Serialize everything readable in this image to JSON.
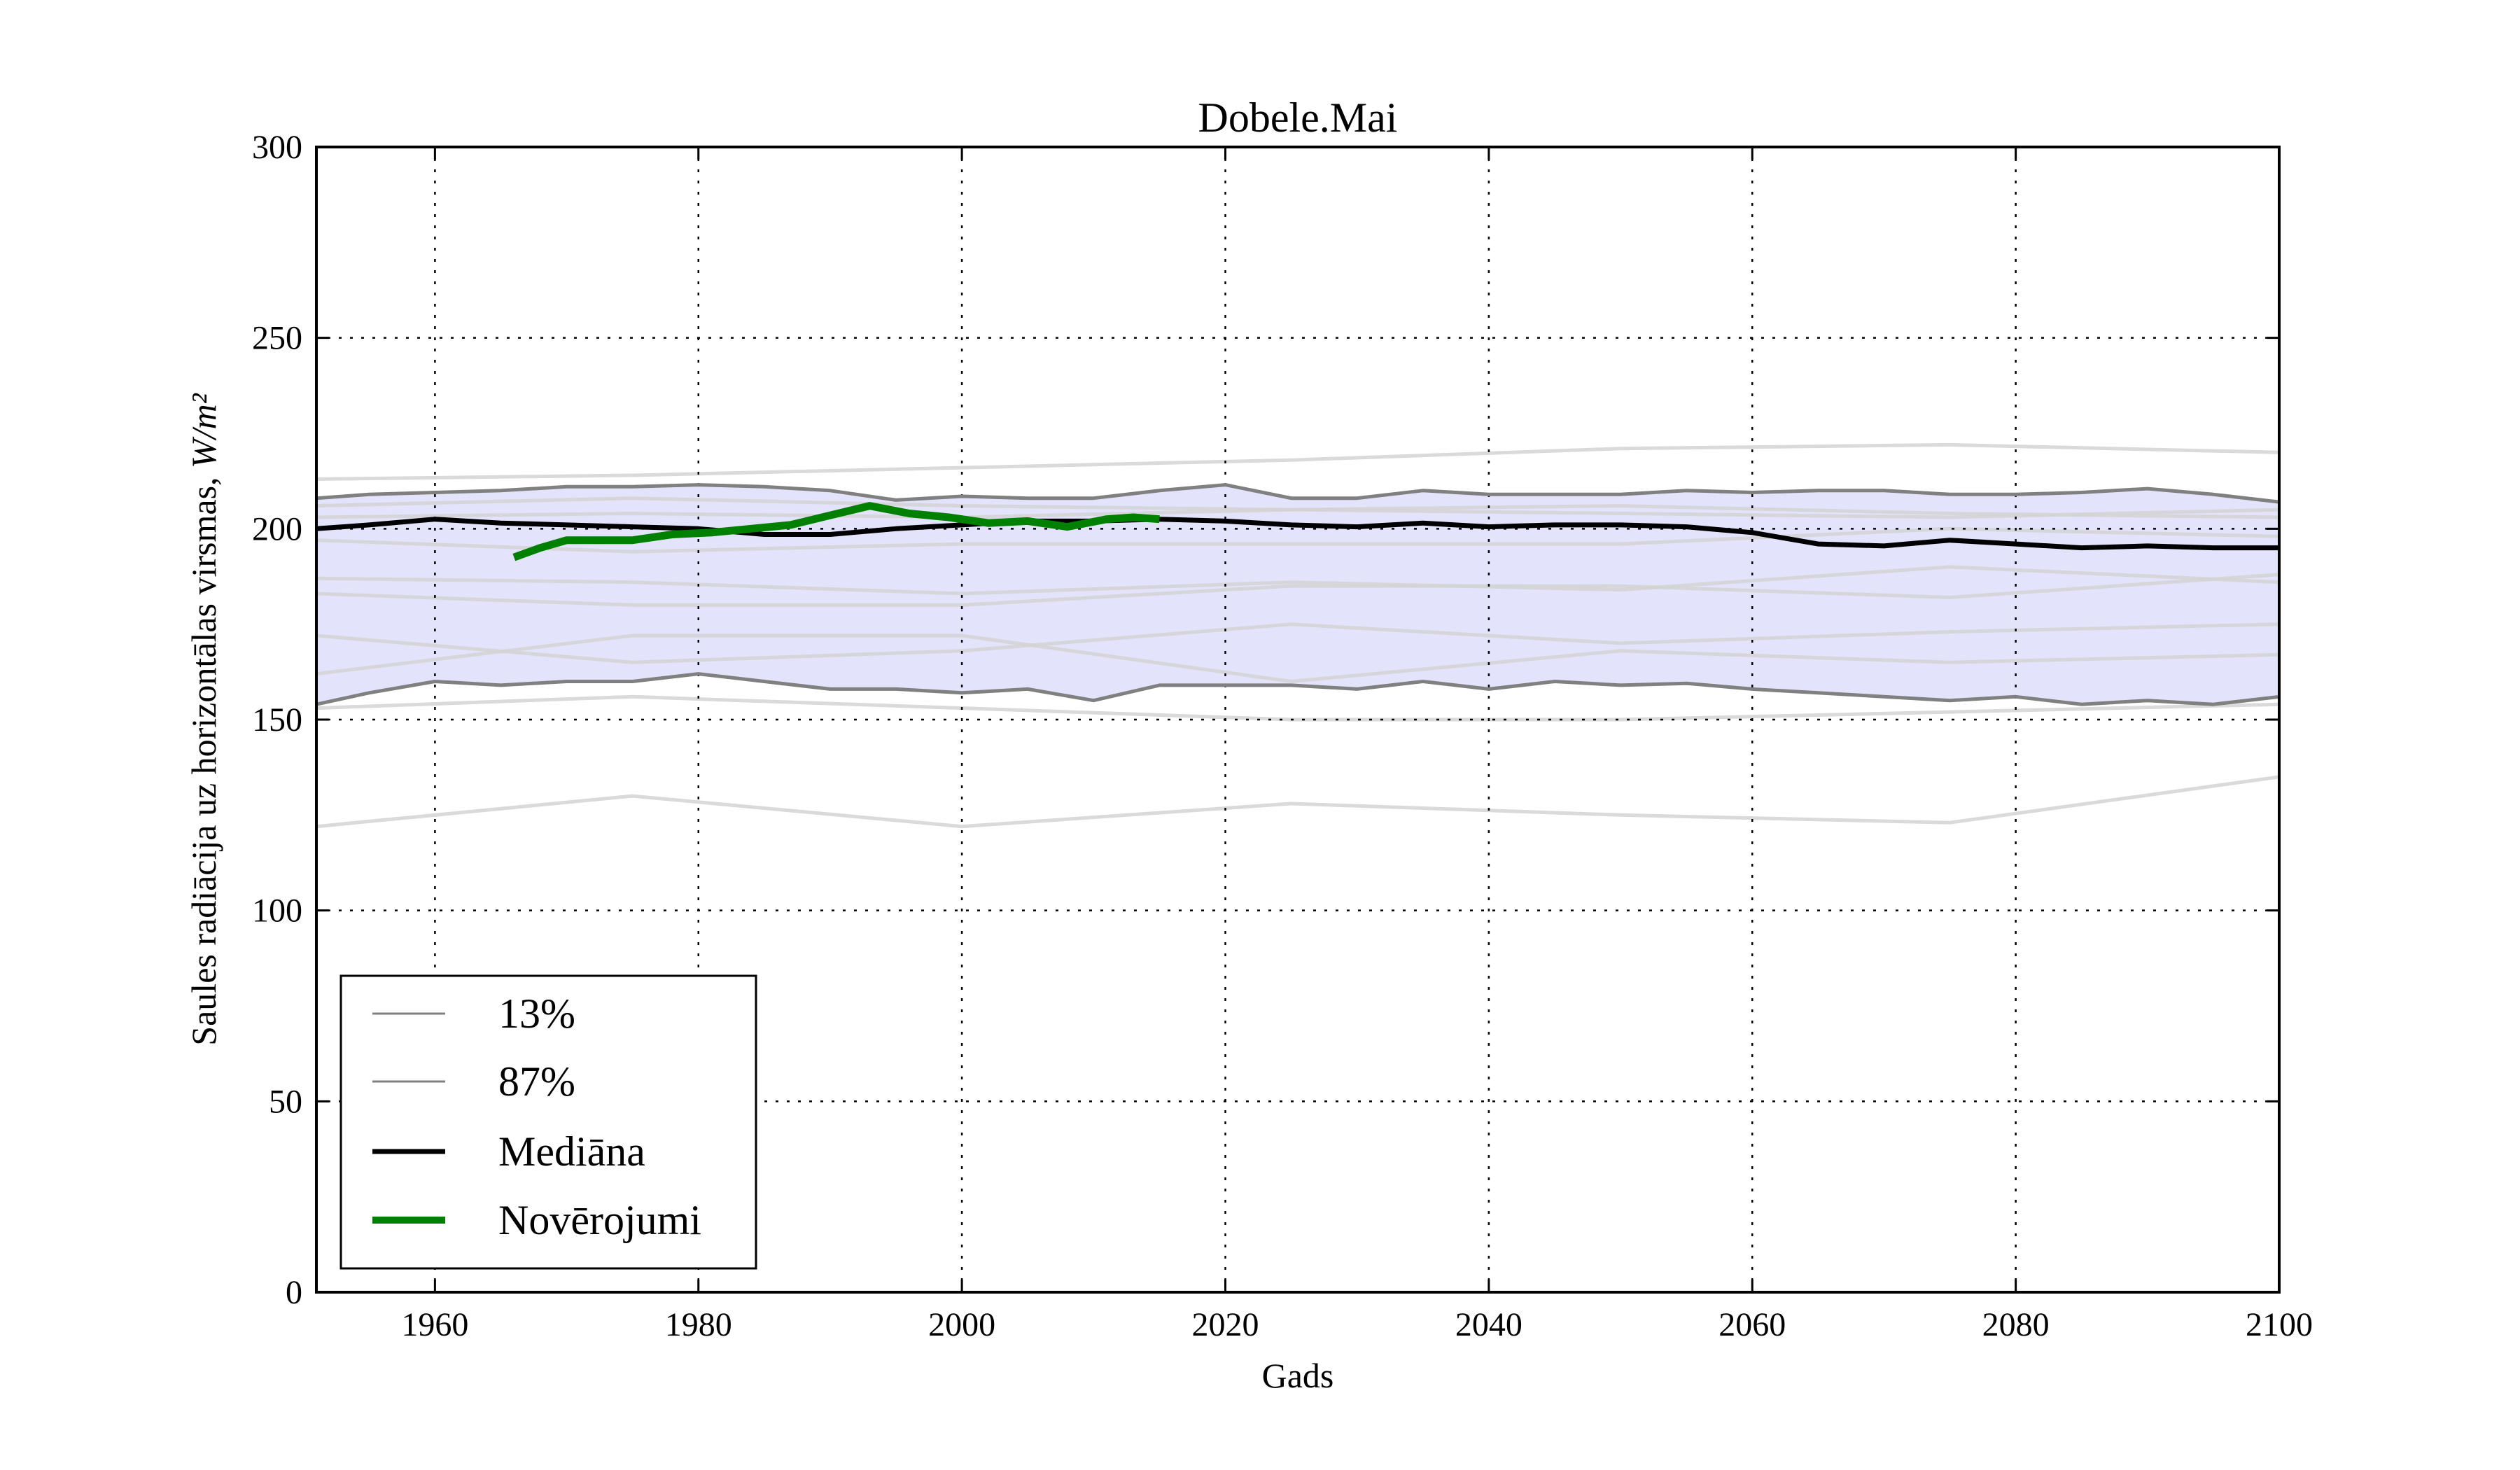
{
  "chart_data": {
    "type": "line",
    "title": "Dobele.Mai",
    "xlabel": "Gads",
    "ylabel": "Saules radiācija uz horizontālas virsmas, ",
    "ylabel_unit": "W/m²",
    "xlim": [
      1951,
      2100
    ],
    "ylim": [
      0,
      300
    ],
    "xticks": [
      1960,
      1980,
      2000,
      2020,
      2040,
      2060,
      2080,
      2100
    ],
    "yticks": [
      0,
      50,
      100,
      150,
      200,
      250,
      300
    ],
    "grid": true,
    "legend_position": "lower-left",
    "colors": {
      "band": "#e3e3fb",
      "p13": "#808080",
      "p87": "#808080",
      "median": "#000000",
      "obs": "#008000",
      "ensemble": "#d3d3d3"
    },
    "x": [
      1951,
      1955,
      1960,
      1965,
      1970,
      1975,
      1980,
      1985,
      1990,
      1995,
      2000,
      2005,
      2010,
      2015,
      2020,
      2025,
      2030,
      2035,
      2040,
      2045,
      2050,
      2055,
      2060,
      2065,
      2070,
      2075,
      2080,
      2085,
      2090,
      2095,
      2100
    ],
    "series": [
      {
        "name": "13%",
        "values": [
          154,
          157,
          160,
          159,
          160,
          160,
          162,
          160,
          158,
          158,
          157,
          158,
          155,
          159,
          159,
          159,
          158,
          160,
          158,
          160,
          159,
          159.5,
          158,
          157,
          156,
          155,
          156,
          154,
          155,
          154,
          156
        ]
      },
      {
        "name": "87%",
        "values": [
          208,
          209,
          209.5,
          210,
          211,
          211,
          211.5,
          211,
          210,
          207.5,
          208.5,
          208,
          208,
          210,
          211.5,
          208,
          208,
          210,
          209,
          209,
          209,
          210,
          209.5,
          210,
          210,
          209,
          209,
          209.5,
          210.5,
          209,
          207
        ]
      },
      {
        "name": "Mediāna",
        "values": [
          200,
          201,
          202.5,
          201.5,
          201,
          200.5,
          200,
          198.5,
          198.5,
          200,
          201,
          202,
          202,
          202.5,
          202,
          201,
          200.5,
          201.5,
          200.5,
          201,
          201,
          200.5,
          199,
          196,
          195.5,
          197,
          196,
          195,
          195.5,
          195,
          195
        ]
      },
      {
        "name": "Novērojumi",
        "x": [
          1966,
          1968,
          1970,
          1972,
          1975,
          1978,
          1981,
          1984,
          1987,
          1990,
          1993,
          1996,
          1999,
          2002,
          2005,
          2008,
          2011,
          2013,
          2015
        ],
        "values": [
          192.5,
          195,
          197,
          197,
          197,
          198.5,
          199,
          200,
          201,
          203.5,
          206,
          204,
          203,
          201.5,
          202,
          200.5,
          202.5,
          203,
          202.5
        ]
      }
    ],
    "ensemble_x": [
      1951,
      1975,
      2000,
      2025,
      2050,
      2075,
      2100
    ],
    "ensemble": [
      [
        122,
        130,
        122,
        128,
        125,
        123,
        135
      ],
      [
        153,
        156,
        153,
        150,
        150,
        152,
        154
      ],
      [
        162,
        172,
        172,
        160,
        168,
        165,
        167
      ],
      [
        172,
        165,
        168,
        175,
        170,
        173,
        175
      ],
      [
        183,
        180,
        180,
        185,
        185,
        182,
        188
      ],
      [
        187,
        186,
        183,
        186,
        184,
        190,
        186
      ],
      [
        197,
        194,
        196,
        196,
        196,
        200,
        198
      ],
      [
        203,
        204,
        203,
        205,
        204,
        203,
        205
      ],
      [
        206,
        208,
        206,
        205,
        206,
        204,
        203
      ],
      [
        213,
        214,
        216,
        218,
        221,
        222,
        220
      ]
    ]
  }
}
